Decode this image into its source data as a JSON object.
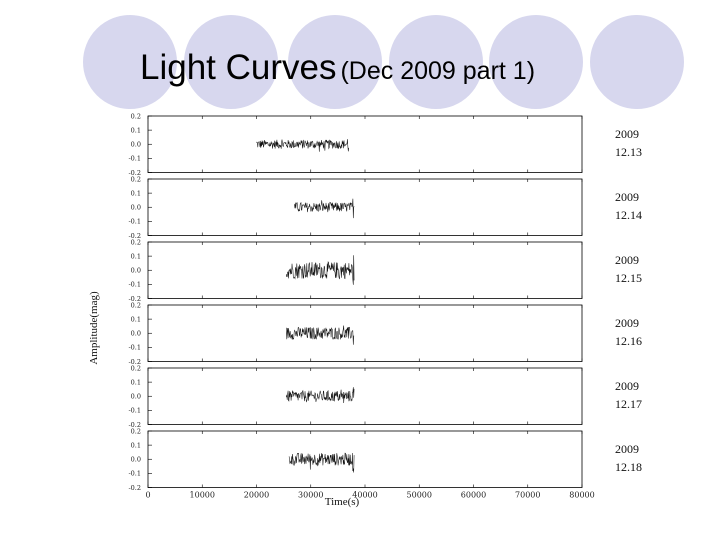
{
  "title": {
    "main": "Light Curves",
    "sub": "(Dec 2009 part 1)"
  },
  "colors": {
    "circle_fill": "#d7d7ee",
    "circle_stroke": "#ffffff",
    "trace": "#111111",
    "frame": "#000000"
  },
  "chart_data": {
    "type": "line",
    "xlabel": "Time(s)",
    "ylabel": "Amplitude(mag)",
    "xlim": [
      0,
      80000
    ],
    "ylim": [
      -0.2,
      0.2
    ],
    "x_ticks": [
      "0",
      "10000",
      "20000",
      "30000",
      "40000",
      "50000",
      "60000",
      "70000",
      "80000"
    ],
    "y_ticks": [
      "0.2",
      "0.1",
      "0.0",
      "-0.1",
      "-0.2"
    ],
    "grid": false,
    "panels": [
      {
        "year": "2009",
        "date": "12.13",
        "x_start": 20000,
        "x_end": 37000,
        "noise": 0.032
      },
      {
        "year": "2009",
        "date": "12.14",
        "x_start": 27000,
        "x_end": 38000,
        "noise": 0.035
      },
      {
        "year": "2009",
        "date": "12.15",
        "x_start": 25500,
        "x_end": 38000,
        "noise": 0.06
      },
      {
        "year": "2009",
        "date": "12.16",
        "x_start": 25500,
        "x_end": 38000,
        "noise": 0.045
      },
      {
        "year": "2009",
        "date": "12.17",
        "x_start": 25500,
        "x_end": 38000,
        "noise": 0.04
      },
      {
        "year": "2009",
        "date": "12.18",
        "x_start": 26000,
        "x_end": 38000,
        "noise": 0.045
      }
    ]
  }
}
